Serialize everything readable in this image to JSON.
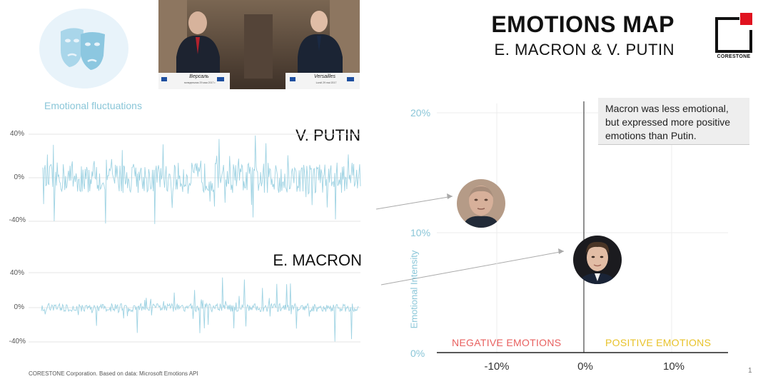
{
  "header": {
    "title": "EMOTIONS MAP",
    "subtitle": "E. MACRON & V. PUTIN",
    "logo_text": "CORESTONE",
    "photo_caption_left": "Версаль",
    "photo_caption_right": "Versailles",
    "photo_sub_left": "понедельник 29 мая 2017 г.",
    "photo_sub_right": "Lundi 29 mai 2017"
  },
  "fluctuations": {
    "title": "Emotional fluctuations",
    "putin": {
      "label": "V. PUTIN",
      "ticks": [
        "40%",
        "0%",
        "-40%"
      ]
    },
    "macron": {
      "label": "E. MACRON",
      "ticks": [
        "40%",
        "0%",
        "-40%"
      ]
    }
  },
  "footer": "CORESTONE Corporation.  Based on data: Microsoft Emotions API",
  "page_number": "1",
  "colors": {
    "line": "#9fd3e3",
    "negative": "#e8605f",
    "positive": "#e8c229",
    "axis_text": "#8ac6d8",
    "logo_red": "#e0121f"
  },
  "chart_data": [
    {
      "type": "line",
      "title": "Emotional fluctuations",
      "series": [
        {
          "name": "V. PUTIN",
          "ylim": [
            -40,
            40
          ],
          "amplitude_profile": "dense high-variance fluctuations across full timeline, peaks near ±45%"
        },
        {
          "name": "E. MACRON",
          "ylim": [
            -40,
            40
          ],
          "amplitude_profile": "mostly low-amplitude fluctuations with occasional spikes up to ±45%"
        }
      ]
    },
    {
      "type": "scatter",
      "xlabel": "",
      "ylabel": "Emotional Intensity",
      "x_ticks": [
        "-10%",
        "0%",
        "10%"
      ],
      "y_ticks": [
        "20%",
        "10%",
        "0%"
      ],
      "xlim": [
        -16,
        16
      ],
      "ylim": [
        0,
        20
      ],
      "regions": {
        "left": "NEGATIVE EMOTIONS",
        "right": "POSITIVE EMOTIONS"
      },
      "points": [
        {
          "name": "V. PUTIN",
          "x": -11.5,
          "y": 12.6
        },
        {
          "name": "E. MACRON",
          "x": 1.5,
          "y": 7.9
        }
      ],
      "annotation": "Macron was less emotional, but expressed more positive emotions than Putin."
    }
  ]
}
